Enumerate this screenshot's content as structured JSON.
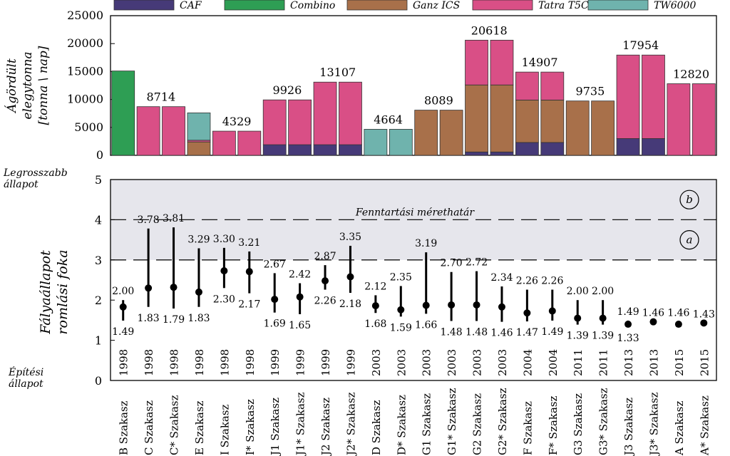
{
  "colors": {
    "CAF": "#463a78",
    "Combino": "#2e9e54",
    "Ganz ICS": "#a8704a",
    "Tatra T5C5": "#d94f86",
    "TW6000": "#6fb3ad",
    "band": "#e6e6ec"
  },
  "chart_data": [
    {
      "type": "bar",
      "stacked": true,
      "ylabel": [
        "Ágördült",
        "elegytonna",
        "[tonna \\ nap]"
      ],
      "ylim": [
        0,
        25000
      ],
      "yticks": [
        0,
        5000,
        10000,
        15000,
        20000,
        25000
      ],
      "legend": {
        "placement": "top",
        "entries": [
          "CAF",
          "Combino",
          "Ganz ICS",
          "Tatra T5C5",
          "TW6000"
        ]
      },
      "series": [
        {
          "name": "CAF",
          "values": [
            0,
            0,
            0,
            0,
            0,
            0,
            1900,
            1900,
            1900,
            1900,
            0,
            0,
            0,
            0,
            600,
            600,
            2300,
            2300,
            0,
            0,
            3000,
            3000,
            0,
            0
          ]
        },
        {
          "name": "Combino",
          "values": [
            15100,
            0,
            0,
            0,
            0,
            0,
            0,
            0,
            0,
            0,
            0,
            0,
            0,
            0,
            0,
            0,
            0,
            0,
            0,
            0,
            0,
            0,
            0,
            0
          ]
        },
        {
          "name": "Ganz ICS",
          "values": [
            0,
            0,
            0,
            2400,
            0,
            0,
            0,
            0,
            0,
            0,
            0,
            0,
            8089,
            8089,
            12000,
            12000,
            7600,
            7600,
            9735,
            9735,
            0,
            0,
            0,
            0
          ]
        },
        {
          "name": "Tatra T5C5",
          "values": [
            0,
            8714,
            8714,
            300,
            4329,
            4329,
            8026,
            8026,
            11207,
            11207,
            0,
            0,
            0,
            0,
            8018,
            8018,
            5007,
            5007,
            0,
            0,
            14954,
            14954,
            12820,
            12820
          ]
        },
        {
          "name": "TW6000",
          "values": [
            0,
            0,
            0,
            4900,
            0,
            0,
            0,
            0,
            0,
            0,
            4664,
            4664,
            0,
            0,
            0,
            0,
            0,
            0,
            0,
            0,
            0,
            0,
            0,
            0
          ]
        }
      ],
      "data_labels": [
        {
          "text": "8714",
          "between": [
            1,
            2
          ],
          "value": 8714
        },
        {
          "text": "4329",
          "between": [
            4,
            5
          ],
          "value": 4329
        },
        {
          "text": "9926",
          "between": [
            6,
            7
          ],
          "value": 9926
        },
        {
          "text": "13107",
          "between": [
            8,
            9
          ],
          "value": 13107
        },
        {
          "text": "4664",
          "between": [
            10,
            11
          ],
          "value": 4664
        },
        {
          "text": "8089",
          "between": [
            12,
            13
          ],
          "value": 8089
        },
        {
          "text": "20618",
          "between": [
            14,
            15
          ],
          "value": 20618
        },
        {
          "text": "14907",
          "between": [
            16,
            17
          ],
          "value": 14907
        },
        {
          "text": "9735",
          "between": [
            18,
            19
          ],
          "value": 9735
        },
        {
          "text": "17954",
          "between": [
            20,
            21
          ],
          "value": 17954
        },
        {
          "text": "12820",
          "between": [
            22,
            23
          ],
          "value": 12820
        }
      ]
    },
    {
      "type": "errorbar",
      "ylabel": [
        "Fályaállapot",
        "romlási foka"
      ],
      "ylim": [
        0,
        5
      ],
      "yticks": [
        0,
        1,
        2,
        3,
        4,
        5
      ],
      "categories": [
        "B Szakasz",
        "C Szakasz",
        "C* Szakasz",
        "E Szakasz",
        "I Szakasz",
        "I* Szakasz",
        "J1 Szakasz",
        "J1* Szakasz",
        "J2 Szakasz",
        "J2* Szakasz",
        "D Szakasz",
        "D* Szakasz",
        "G1 Szakasz",
        "G1* Szakasz",
        "G2 Szakasz",
        "G2* Szakasz",
        "F Szakasz",
        "F* Szakasz",
        "G3 Szakasz",
        "G3* Szakasz",
        "J3 Szakasz",
        "J3* Szakasz",
        "A Szakasz",
        "A* Szakasz"
      ],
      "years": [
        "1998",
        "1998",
        "1998",
        "1998",
        "1998",
        "1998",
        "1999",
        "1999",
        "1999",
        "1999",
        "2003",
        "2003",
        "2003",
        "2003",
        "2003",
        "2003",
        "2004",
        "2004",
        "2011",
        "2011",
        "2013",
        "2013",
        "2015",
        "2015"
      ],
      "mean": [
        1.83,
        2.3,
        2.32,
        2.2,
        2.73,
        2.71,
        2.02,
        2.08,
        2.48,
        2.58,
        1.86,
        1.76,
        1.87,
        1.88,
        1.88,
        1.83,
        1.68,
        1.73,
        1.55,
        1.55,
        1.4,
        1.46,
        1.4,
        1.43
      ],
      "high": [
        2.0,
        3.78,
        3.81,
        3.29,
        3.3,
        3.21,
        2.67,
        2.42,
        2.87,
        3.35,
        2.12,
        2.35,
        3.19,
        2.7,
        2.72,
        2.34,
        2.26,
        2.26,
        2.0,
        2.0,
        1.49,
        1.46,
        1.46,
        1.43
      ],
      "low": [
        1.49,
        1.83,
        1.79,
        1.83,
        2.3,
        2.17,
        1.69,
        1.65,
        2.26,
        2.18,
        1.68,
        1.59,
        1.66,
        1.48,
        1.48,
        1.46,
        1.47,
        1.49,
        1.39,
        1.39,
        1.33,
        1.46,
        1.4,
        1.43
      ],
      "high_labels": [
        "2.00",
        "3.78",
        "3.81",
        "3.29",
        "3.30",
        "3.21",
        "2.67",
        "2.42",
        "2.87",
        "3.35",
        "2.12",
        "2.35",
        "3.19",
        "2.70",
        "2.72",
        "2.34",
        "2.26",
        "2.26",
        "2.00",
        "2.00",
        "1.49",
        "1.46",
        "1.46",
        "1.43"
      ],
      "low_labels": [
        "1.49",
        "1.83",
        "1.79",
        "1.83",
        "2.30",
        "2.17",
        "1.69",
        "1.65",
        "2.26",
        "2.18",
        "1.68",
        "1.59",
        "1.66",
        "1.48",
        "1.48",
        "1.46",
        "1.47",
        "1.49",
        "1.39",
        "1.39",
        "1.33",
        "",
        "",
        ""
      ],
      "thresholds": [
        3,
        4
      ],
      "shaded_band": [
        3,
        5
      ],
      "threshold_label": "Fenntartási mérethatár",
      "zone_markers": [
        "a",
        "b"
      ],
      "top_state_label": [
        "Legrosszabb",
        "állapot"
      ],
      "bottom_state_label": [
        "Építési",
        "állapot"
      ]
    }
  ]
}
